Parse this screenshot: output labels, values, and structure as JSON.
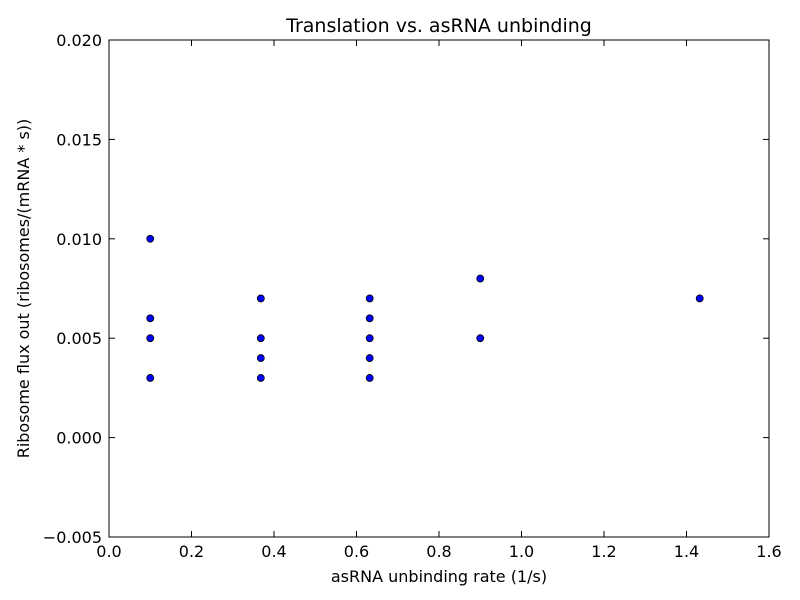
{
  "chart_data": {
    "type": "scatter",
    "title": "Translation vs. asRNA unbinding",
    "xlabel": "asRNA unbinding rate (1/s)",
    "ylabel": "Ribosome flux out (ribosomes/(mRNA * s))",
    "xlim": [
      0.0,
      1.6
    ],
    "ylim": [
      -0.005,
      0.02
    ],
    "x_ticks": [
      0.0,
      0.2,
      0.4,
      0.6,
      0.8,
      1.0,
      1.2,
      1.4,
      1.6
    ],
    "x_tick_labels": [
      "0.0",
      "0.2",
      "0.4",
      "0.6",
      "0.8",
      "1.0",
      "1.2",
      "1.4",
      "1.6"
    ],
    "y_ticks": [
      -0.005,
      0.0,
      0.005,
      0.01,
      0.015,
      0.02
    ],
    "y_tick_labels": [
      "−0.005",
      "0.000",
      "0.005",
      "0.010",
      "0.015",
      "0.020"
    ],
    "grid": false,
    "marker_color": "#0000ff",
    "marker_edge_color": "#000000",
    "series": [
      {
        "points": [
          {
            "x": 0.1,
            "y": 0.01
          },
          {
            "x": 0.1,
            "y": 0.006
          },
          {
            "x": 0.1,
            "y": 0.005
          },
          {
            "x": 0.1,
            "y": 0.003
          },
          {
            "x": 0.368,
            "y": 0.007
          },
          {
            "x": 0.368,
            "y": 0.005
          },
          {
            "x": 0.368,
            "y": 0.004
          },
          {
            "x": 0.368,
            "y": 0.003
          },
          {
            "x": 0.632,
            "y": 0.007
          },
          {
            "x": 0.632,
            "y": 0.006
          },
          {
            "x": 0.632,
            "y": 0.005
          },
          {
            "x": 0.632,
            "y": 0.004
          },
          {
            "x": 0.632,
            "y": 0.003
          },
          {
            "x": 0.9,
            "y": 0.008
          },
          {
            "x": 0.9,
            "y": 0.005
          },
          {
            "x": 1.432,
            "y": 0.007
          }
        ]
      }
    ]
  }
}
